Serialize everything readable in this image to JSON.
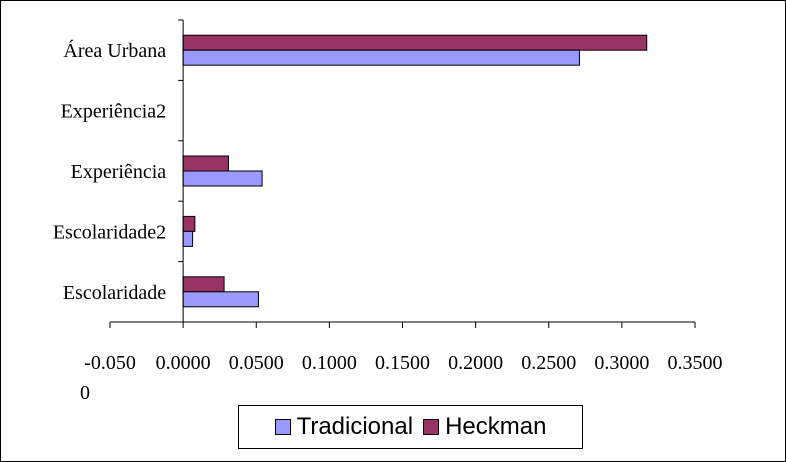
{
  "chart_data": {
    "type": "bar",
    "orientation": "horizontal",
    "categories": [
      "Escolaridade",
      "Escolaridade2",
      "Experiência",
      "Experiência2",
      "Área Urbana"
    ],
    "series": [
      {
        "name": "Tradicional",
        "color": "#9999ff",
        "values": [
          0.0515,
          0.0065,
          0.054,
          0.0,
          0.271
        ]
      },
      {
        "name": "Heckman",
        "color": "#993366",
        "values": [
          0.028,
          0.008,
          0.031,
          0.0,
          0.317
        ]
      }
    ],
    "xlim": [
      -0.05,
      0.35
    ],
    "xticks": [
      -0.05,
      0.0,
      0.05,
      0.1,
      0.15,
      0.2,
      0.25,
      0.3,
      0.35
    ],
    "xtick_labels": [
      "-0.050\n0",
      "0.0000",
      "0.0500",
      "0.1000",
      "0.1500",
      "0.2000",
      "0.2500",
      "0.3000",
      "0.3500"
    ],
    "grid": false,
    "legend_position": "bottom"
  }
}
